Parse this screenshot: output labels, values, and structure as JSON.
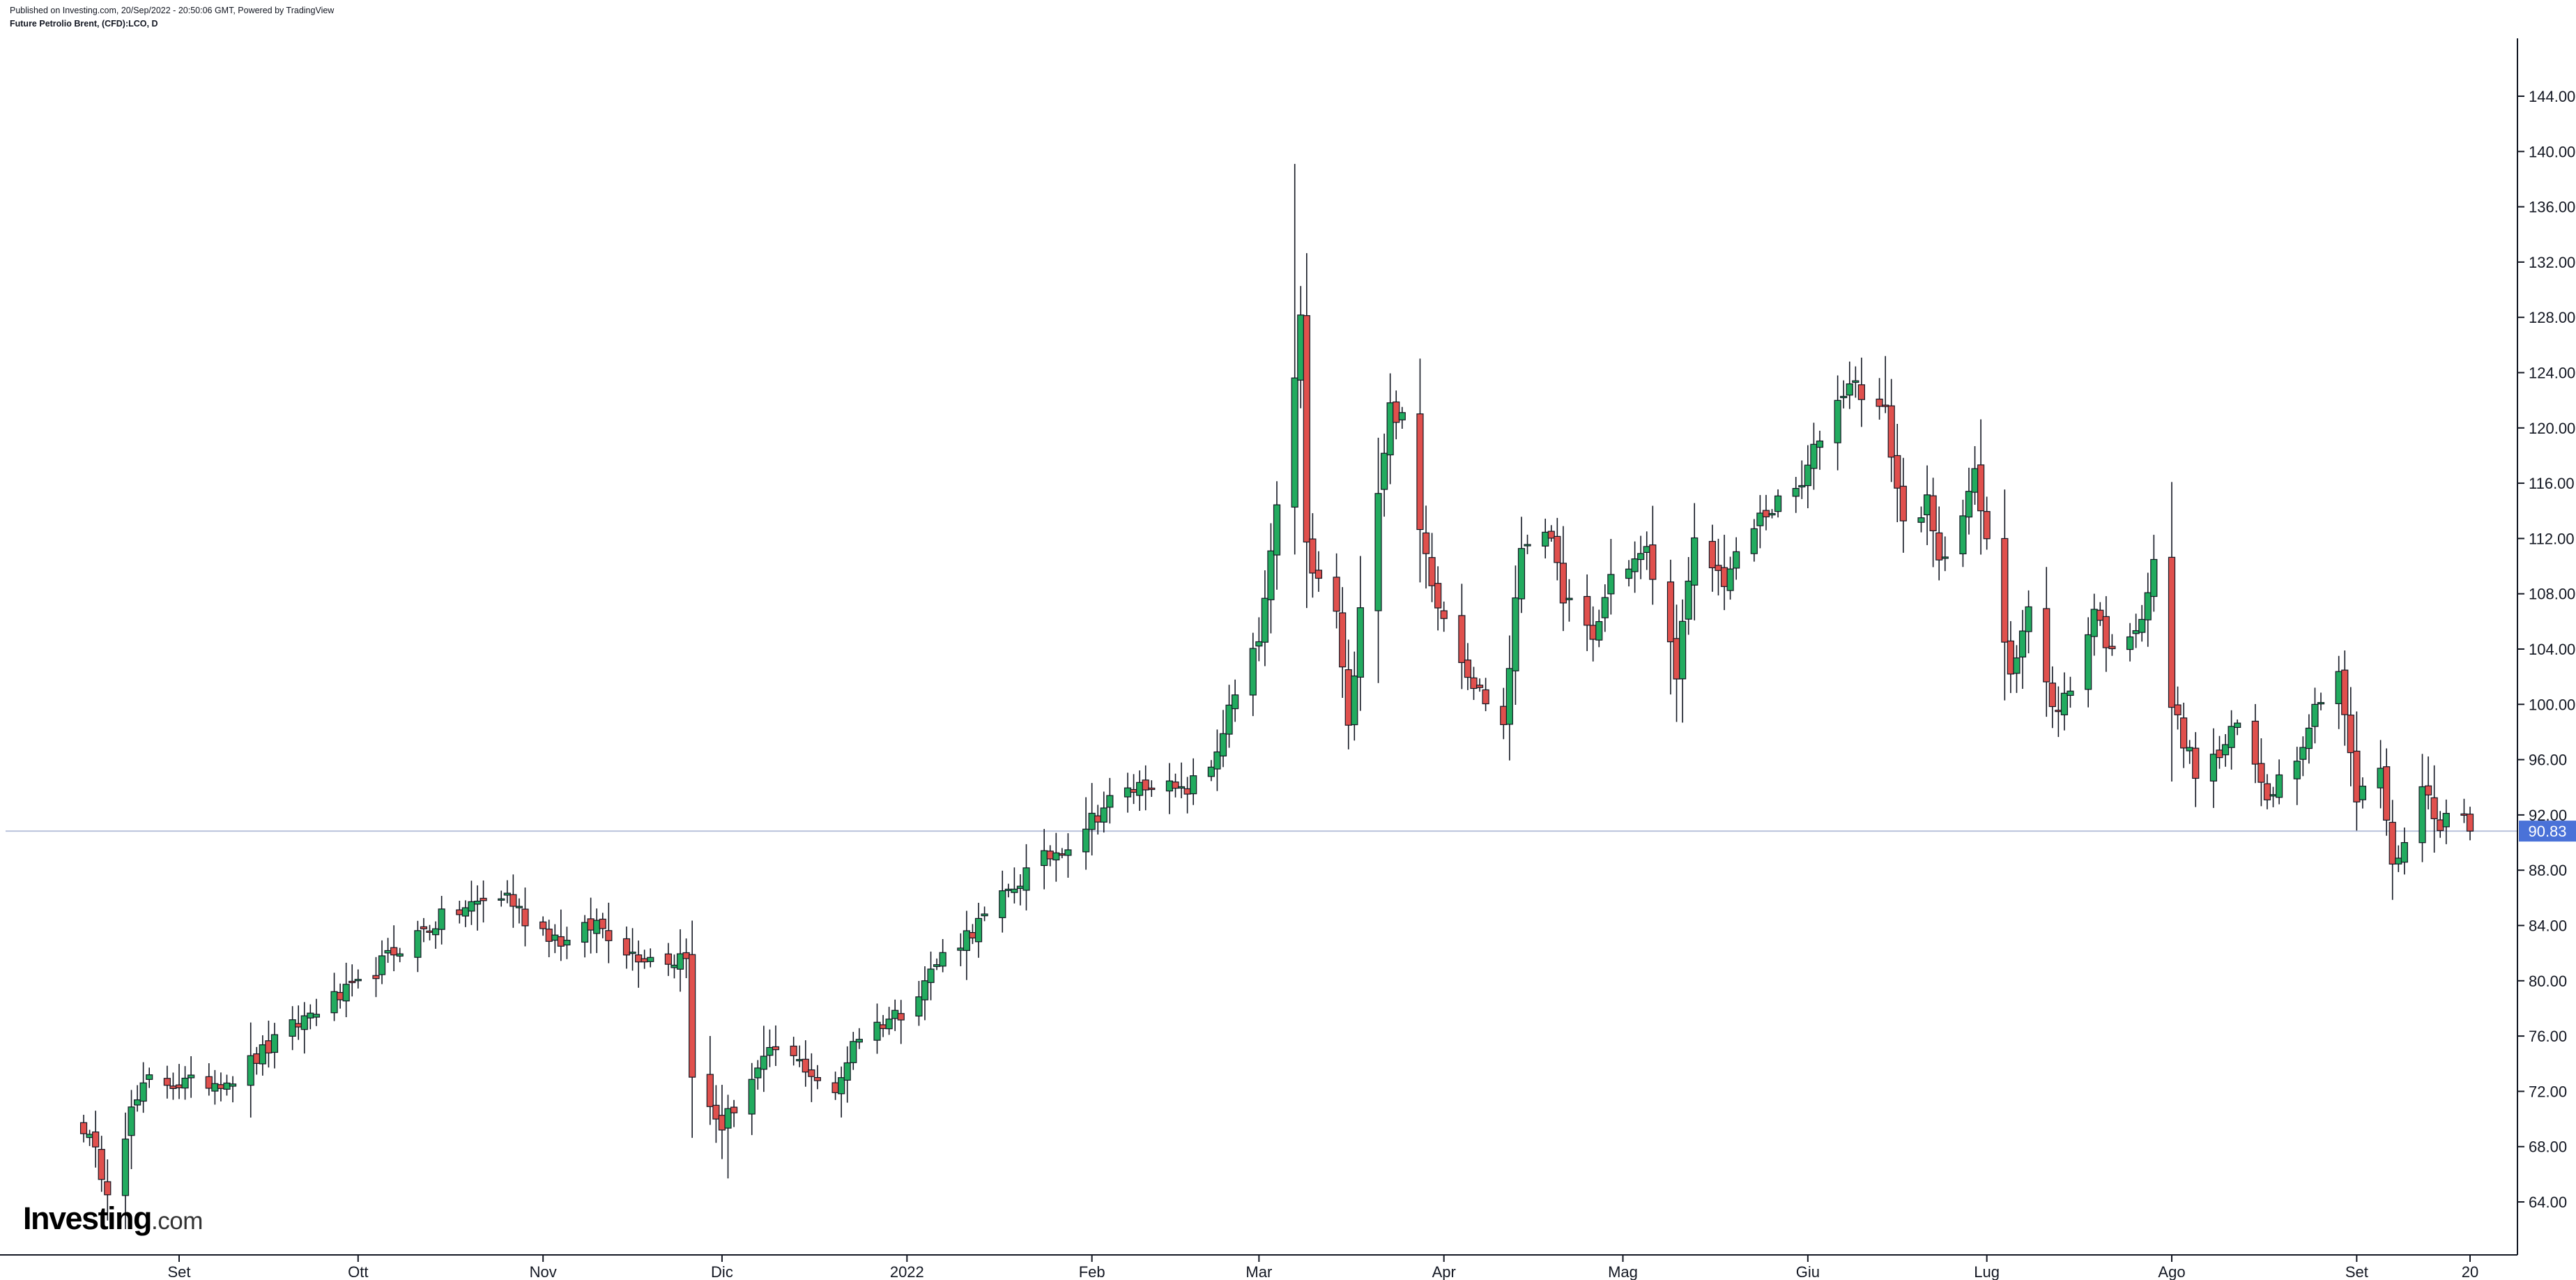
{
  "header": {
    "published": "Published on Investing.com, 20/Sep/2022 - 20:50:06 GMT, Powered by TradingView",
    "symbol": "Future Petrolio Brent, (CFD):LCO, D"
  },
  "logo": {
    "brand": "Investing",
    "suffix": ".com"
  },
  "colors": {
    "up": "#22ab5f",
    "down": "#e0504d",
    "outline": "#131722",
    "last_price_tag": "#4a72d8",
    "last_price_line": "#b9c3dc",
    "axis": "#131722"
  },
  "chart_data": {
    "type": "candlestick",
    "title": "Future Petrolio Brent, (CFD):LCO, D",
    "x_range": [
      "2021-08-16",
      "2022-09-20"
    ],
    "ylim": [
      60,
      148
    ],
    "y_ticks": [
      "64.00",
      "68.00",
      "72.00",
      "76.00",
      "80.00",
      "84.00",
      "88.00",
      "92.00",
      "96.00",
      "100.00",
      "104.00",
      "108.00",
      "112.00",
      "116.00",
      "120.00",
      "124.00",
      "128.00",
      "132.00",
      "136.00",
      "140.00",
      "144.00"
    ],
    "x_ticks": [
      {
        "label": "Set",
        "date": "2021-09-01"
      },
      {
        "label": "Ott",
        "date": "2021-10-01"
      },
      {
        "label": "Nov",
        "date": "2021-11-01"
      },
      {
        "label": "Dic",
        "date": "2021-12-01"
      },
      {
        "label": "2022",
        "date": "2022-01-01"
      },
      {
        "label": "Feb",
        "date": "2022-02-01"
      },
      {
        "label": "Mar",
        "date": "2022-03-01"
      },
      {
        "label": "Apr",
        "date": "2022-04-01"
      },
      {
        "label": "Mag",
        "date": "2022-05-01"
      },
      {
        "label": "Giu",
        "date": "2022-06-01"
      },
      {
        "label": "Lug",
        "date": "2022-07-01"
      },
      {
        "label": "Ago",
        "date": "2022-08-01"
      },
      {
        "label": "Set",
        "date": "2022-09-01"
      },
      {
        "label": "20",
        "date": "2022-09-20"
      }
    ],
    "last_price": 90.83,
    "last_price_label": "90.83",
    "grid": false,
    "legend": "none",
    "anchors": [
      [
        "2021-08-16",
        69.5
      ],
      [
        "2021-08-20",
        65.2
      ],
      [
        "2021-08-24",
        70.5
      ],
      [
        "2021-08-27",
        72.8
      ],
      [
        "2021-09-03",
        72.5
      ],
      [
        "2021-09-10",
        73.0
      ],
      [
        "2021-09-17",
        75.5
      ],
      [
        "2021-09-24",
        78.0
      ],
      [
        "2021-10-01",
        79.5
      ],
      [
        "2021-10-08",
        82.5
      ],
      [
        "2021-10-15",
        84.5
      ],
      [
        "2021-10-22",
        85.8
      ],
      [
        "2021-10-26",
        86.2
      ],
      [
        "2021-10-29",
        84.5
      ],
      [
        "2021-11-05",
        82.7
      ],
      [
        "2021-11-10",
        84.2
      ],
      [
        "2021-11-16",
        82.0
      ],
      [
        "2021-11-23",
        81.5
      ],
      [
        "2021-11-25",
        82.2
      ],
      [
        "2021-11-26",
        72.7
      ],
      [
        "2021-12-01",
        69.5
      ],
      [
        "2021-12-06",
        73.0
      ],
      [
        "2021-12-10",
        75.0
      ],
      [
        "2021-12-15",
        73.8
      ],
      [
        "2021-12-20",
        71.5
      ],
      [
        "2021-12-23",
        75.8
      ],
      [
        "2021-12-31",
        77.8
      ],
      [
        "2022-01-07",
        81.8
      ],
      [
        "2022-01-14",
        84.5
      ],
      [
        "2022-01-21",
        87.8
      ],
      [
        "2022-01-28",
        90.0
      ],
      [
        "2022-02-04",
        93.0
      ],
      [
        "2022-02-11",
        94.5
      ],
      [
        "2022-02-16",
        93.5
      ],
      [
        "2022-02-21",
        95.5
      ],
      [
        "2022-02-24",
        99.5
      ],
      [
        "2022-03-01",
        104.5
      ],
      [
        "2022-03-03",
        110.5
      ],
      [
        "2022-03-07",
        124.0
      ],
      [
        "2022-03-08",
        127.8
      ],
      [
        "2022-03-09",
        111.5
      ],
      [
        "2022-03-10",
        109.5
      ],
      [
        "2022-03-14",
        106.8
      ],
      [
        "2022-03-16",
        98.0
      ],
      [
        "2022-03-18",
        107.5
      ],
      [
        "2022-03-21",
        115.5
      ],
      [
        "2022-03-23",
        121.5
      ],
      [
        "2022-03-25",
        120.5
      ],
      [
        "2022-03-28",
        112.5
      ],
      [
        "2022-03-31",
        107.5
      ],
      [
        "2022-04-06",
        101.5
      ],
      [
        "2022-04-11",
        98.5
      ],
      [
        "2022-04-14",
        111.5
      ],
      [
        "2022-04-18",
        113.0
      ],
      [
        "2022-04-21",
        108.0
      ],
      [
        "2022-04-26",
        104.5
      ],
      [
        "2022-04-29",
        109.3
      ],
      [
        "2022-05-05",
        111.0
      ],
      [
        "2022-05-10",
        102.5
      ],
      [
        "2022-05-13",
        111.5
      ],
      [
        "2022-05-18",
        109.0
      ],
      [
        "2022-05-24",
        113.5
      ],
      [
        "2022-05-31",
        115.8
      ],
      [
        "2022-06-03",
        119.5
      ],
      [
        "2022-06-08",
        123.5
      ],
      [
        "2022-06-14",
        121.0
      ],
      [
        "2022-06-17",
        113.0
      ],
      [
        "2022-06-21",
        114.5
      ],
      [
        "2022-06-23",
        110.0
      ],
      [
        "2022-06-29",
        116.5
      ],
      [
        "2022-07-01",
        111.5
      ],
      [
        "2022-07-05",
        102.5
      ],
      [
        "2022-07-08",
        107.0
      ],
      [
        "2022-07-12",
        99.5
      ],
      [
        "2022-07-15",
        101.0
      ],
      [
        "2022-07-19",
        107.0
      ],
      [
        "2022-07-22",
        103.5
      ],
      [
        "2022-07-27",
        106.5
      ],
      [
        "2022-07-29",
        110.0
      ],
      [
        "2022-08-01",
        100.0
      ],
      [
        "2022-08-05",
        95.0
      ],
      [
        "2022-08-09",
        96.3
      ],
      [
        "2022-08-12",
        98.5
      ],
      [
        "2022-08-17",
        93.5
      ],
      [
        "2022-08-22",
        96.5
      ],
      [
        "2022-08-26",
        100.8
      ],
      [
        "2022-08-29",
        102.5
      ],
      [
        "2022-09-01",
        93.0
      ],
      [
        "2022-09-05",
        95.5
      ],
      [
        "2022-09-07",
        88.0
      ],
      [
        "2022-09-12",
        94.0
      ],
      [
        "2022-09-15",
        91.5
      ],
      [
        "2022-09-19",
        92.0
      ],
      [
        "2022-09-20",
        90.83
      ]
    ],
    "extremes": [
      [
        "2022-03-07",
        139.1,
        "high"
      ],
      [
        "2021-12-02",
        65.7,
        "low"
      ],
      [
        "2021-08-20",
        64.6,
        "low"
      ],
      [
        "2022-06-14",
        125.2,
        "high"
      ],
      [
        "2022-06-08",
        124.8,
        "high"
      ],
      [
        "2022-09-07",
        87.3,
        "low"
      ]
    ]
  }
}
